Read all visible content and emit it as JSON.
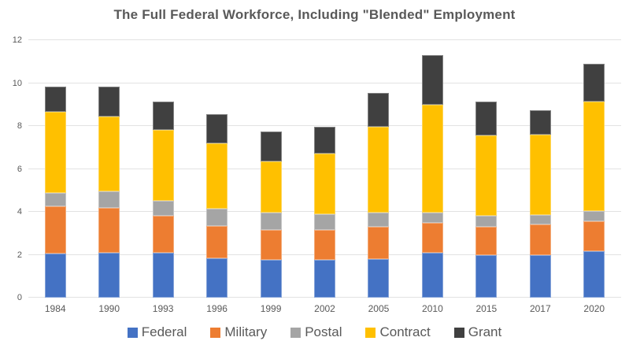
{
  "title": "The Full Federal Workforce, Including \"Blended\" Employment",
  "colors": {
    "federal": "#4472C4",
    "military": "#ED7D31",
    "postal": "#A5A5A5",
    "contract": "#FFC000",
    "grant": "#404040",
    "gridline": "#E2E2E2",
    "axis_text": "#595959",
    "title_text": "#595959"
  },
  "chart_data": {
    "type": "bar",
    "stacked": true,
    "title": "The Full Federal Workforce, Including \"Blended\" Employment",
    "categories": [
      "1984",
      "1990",
      "1993",
      "1996",
      "1999",
      "2002",
      "2005",
      "2010",
      "2015",
      "2017",
      "2020"
    ],
    "series": [
      {
        "name": "Federal",
        "color": "#4472C4",
        "values": [
          2.05,
          2.1,
          2.1,
          1.85,
          1.75,
          1.75,
          1.8,
          2.1,
          2.0,
          2.0,
          2.15
        ]
      },
      {
        "name": "Military",
        "color": "#ED7D31",
        "values": [
          2.2,
          2.1,
          1.7,
          1.5,
          1.4,
          1.4,
          1.5,
          1.4,
          1.3,
          1.4,
          1.4
        ]
      },
      {
        "name": "Postal",
        "color": "#A5A5A5",
        "values": [
          0.65,
          0.75,
          0.7,
          0.8,
          0.8,
          0.75,
          0.65,
          0.45,
          0.5,
          0.45,
          0.5
        ]
      },
      {
        "name": "Contract",
        "color": "#FFC000",
        "values": [
          3.75,
          3.5,
          3.3,
          3.05,
          2.4,
          2.8,
          4.0,
          5.05,
          3.75,
          3.75,
          5.1
        ]
      },
      {
        "name": "Grant",
        "color": "#404040",
        "values": [
          1.2,
          1.4,
          1.35,
          1.35,
          1.4,
          1.25,
          1.6,
          2.3,
          1.6,
          1.15,
          1.75
        ]
      }
    ],
    "totals": [
      9.85,
      9.85,
      9.15,
      8.55,
      7.75,
      7.95,
      9.55,
      11.3,
      9.15,
      8.75,
      10.9
    ],
    "xlabel": "",
    "ylabel": "",
    "ylim": [
      0,
      12
    ],
    "yticks": [
      0,
      2,
      4,
      6,
      8,
      10,
      12
    ],
    "grid": true,
    "legend_position": "bottom"
  }
}
